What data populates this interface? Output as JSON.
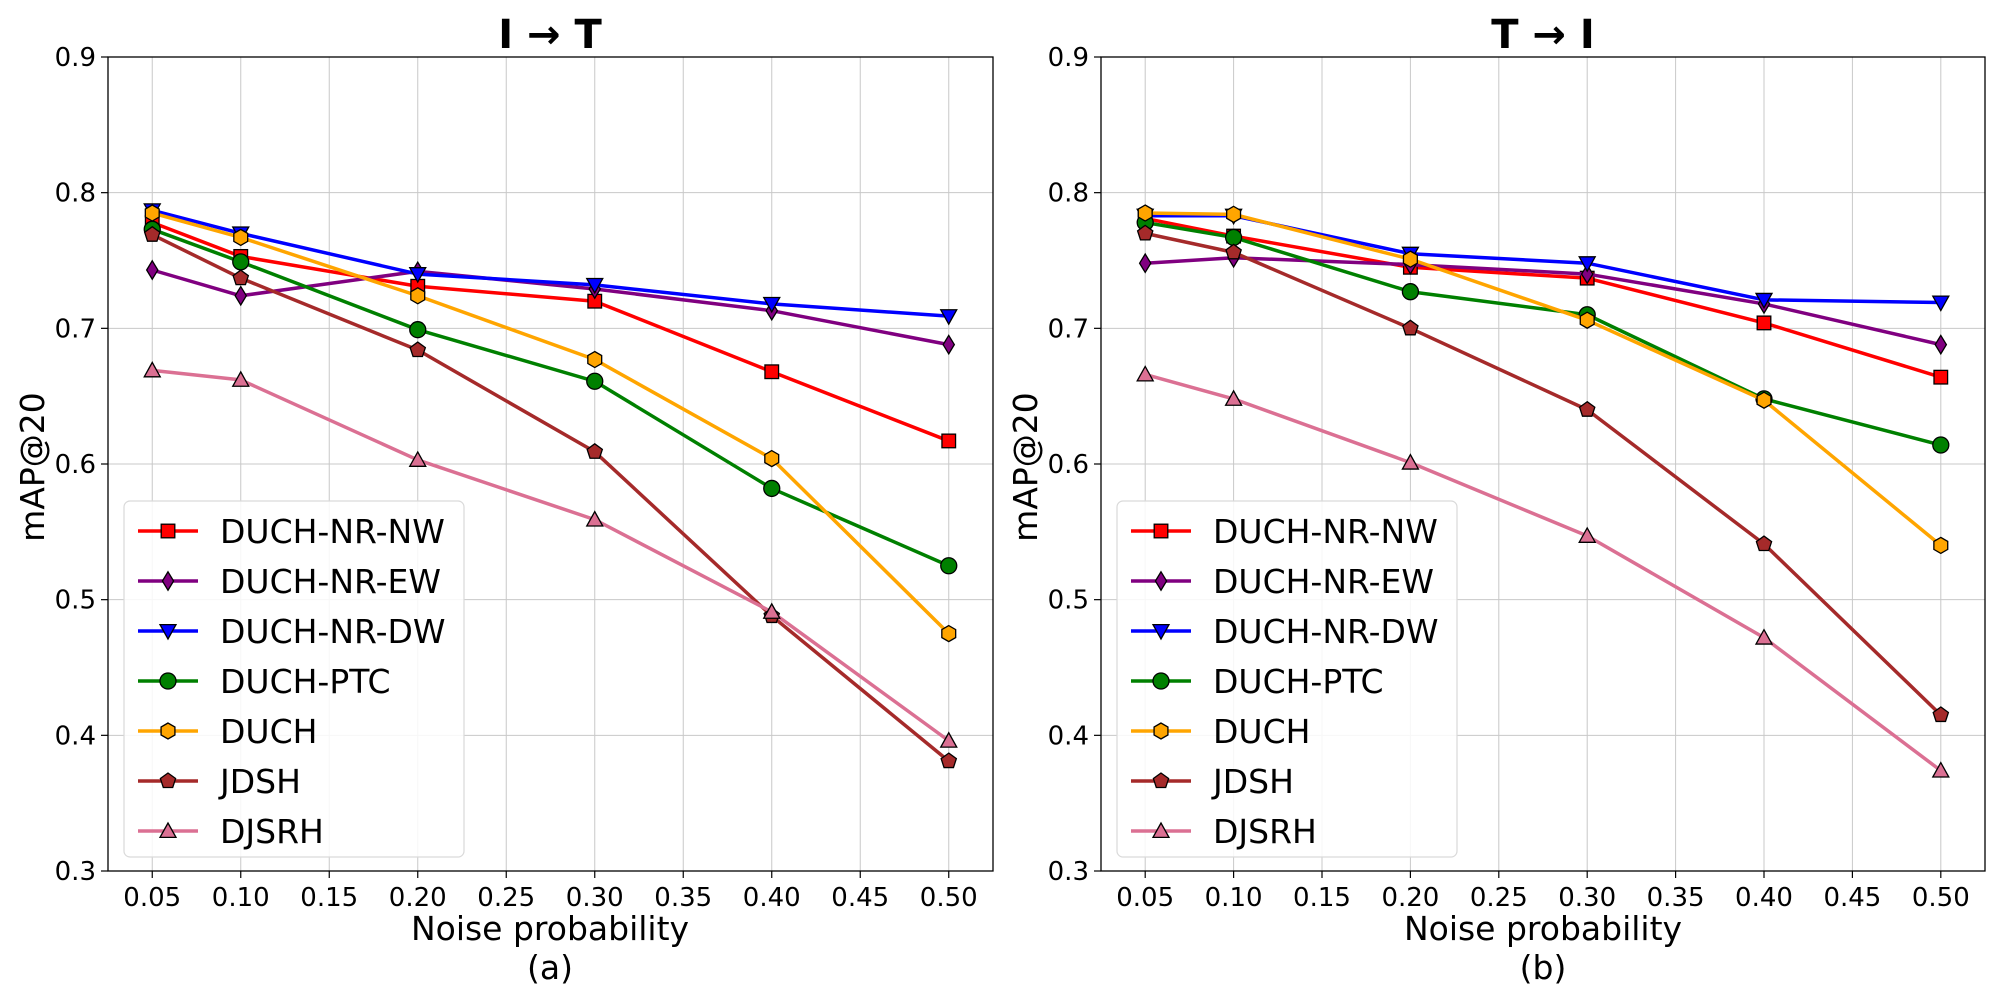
{
  "chart_data": [
    {
      "type": "line",
      "title": "I → T",
      "xlabel": "Noise probability",
      "ylabel": "mAP@20",
      "caption": "(a)",
      "x": [
        0.05,
        0.1,
        0.2,
        0.3,
        0.4,
        0.5
      ],
      "xticks": [
        "0.05",
        "0.10",
        "0.15",
        "0.20",
        "0.25",
        "0.30",
        "0.35",
        "0.40",
        "0.45",
        "0.50"
      ],
      "yticks": [
        "0.3",
        "0.4",
        "0.5",
        "0.6",
        "0.7",
        "0.8",
        "0.9"
      ],
      "xlim": [
        0.025,
        0.525
      ],
      "ylim": [
        0.3,
        0.9
      ],
      "grid": true,
      "legend_position": "lower-left",
      "series": [
        {
          "name": "DUCH-NR-NW",
          "color": "#ff0000",
          "marker": "square",
          "values": [
            0.778,
            0.753,
            0.731,
            0.72,
            0.668,
            0.617
          ]
        },
        {
          "name": "DUCH-NR-EW",
          "color": "#800080",
          "marker": "thin-diamond",
          "values": [
            0.743,
            0.724,
            0.742,
            0.729,
            0.713,
            0.688
          ]
        },
        {
          "name": "DUCH-NR-DW",
          "color": "#0000ff",
          "marker": "triangle-down",
          "values": [
            0.787,
            0.77,
            0.74,
            0.732,
            0.718,
            0.709
          ]
        },
        {
          "name": "DUCH-PTC",
          "color": "#008000",
          "marker": "circle",
          "values": [
            0.773,
            0.749,
            0.699,
            0.661,
            0.582,
            0.525
          ]
        },
        {
          "name": "DUCH",
          "color": "#ffa500",
          "marker": "hexagon",
          "values": [
            0.785,
            0.767,
            0.724,
            0.677,
            0.604,
            0.475
          ]
        },
        {
          "name": "JDSH",
          "color": "#a52a2a",
          "marker": "pentagon",
          "values": [
            0.769,
            0.737,
            0.684,
            0.609,
            0.488,
            0.381
          ]
        },
        {
          "name": "DJSRH",
          "color": "#db7093",
          "marker": "triangle-up",
          "values": [
            0.669,
            0.662,
            0.603,
            0.559,
            0.491,
            0.396
          ]
        }
      ]
    },
    {
      "type": "line",
      "title": "T → I",
      "xlabel": "Noise probability",
      "ylabel": "mAP@20",
      "caption": "(b)",
      "x": [
        0.05,
        0.1,
        0.2,
        0.3,
        0.4,
        0.5
      ],
      "xticks": [
        "0.05",
        "0.10",
        "0.15",
        "0.20",
        "0.25",
        "0.30",
        "0.35",
        "0.40",
        "0.45",
        "0.50"
      ],
      "yticks": [
        "0.3",
        "0.4",
        "0.5",
        "0.6",
        "0.7",
        "0.8",
        "0.9"
      ],
      "xlim": [
        0.025,
        0.525
      ],
      "ylim": [
        0.3,
        0.9
      ],
      "grid": true,
      "legend_position": "lower-left",
      "series": [
        {
          "name": "DUCH-NR-NW",
          "color": "#ff0000",
          "marker": "square",
          "values": [
            0.781,
            0.768,
            0.745,
            0.737,
            0.704,
            0.664
          ]
        },
        {
          "name": "DUCH-NR-EW",
          "color": "#800080",
          "marker": "thin-diamond",
          "values": [
            0.748,
            0.752,
            0.747,
            0.74,
            0.718,
            0.688
          ]
        },
        {
          "name": "DUCH-NR-DW",
          "color": "#0000ff",
          "marker": "triangle-down",
          "values": [
            0.783,
            0.783,
            0.755,
            0.748,
            0.721,
            0.719
          ]
        },
        {
          "name": "DUCH-PTC",
          "color": "#008000",
          "marker": "circle",
          "values": [
            0.778,
            0.767,
            0.727,
            0.71,
            0.648,
            0.614
          ]
        },
        {
          "name": "DUCH",
          "color": "#ffa500",
          "marker": "hexagon",
          "values": [
            0.785,
            0.784,
            0.751,
            0.706,
            0.647,
            0.54
          ]
        },
        {
          "name": "JDSH",
          "color": "#a52a2a",
          "marker": "pentagon",
          "values": [
            0.77,
            0.756,
            0.7,
            0.64,
            0.541,
            0.415
          ]
        },
        {
          "name": "DJSRH",
          "color": "#db7093",
          "marker": "triangle-up",
          "values": [
            0.666,
            0.648,
            0.601,
            0.547,
            0.472,
            0.374
          ]
        }
      ]
    }
  ]
}
